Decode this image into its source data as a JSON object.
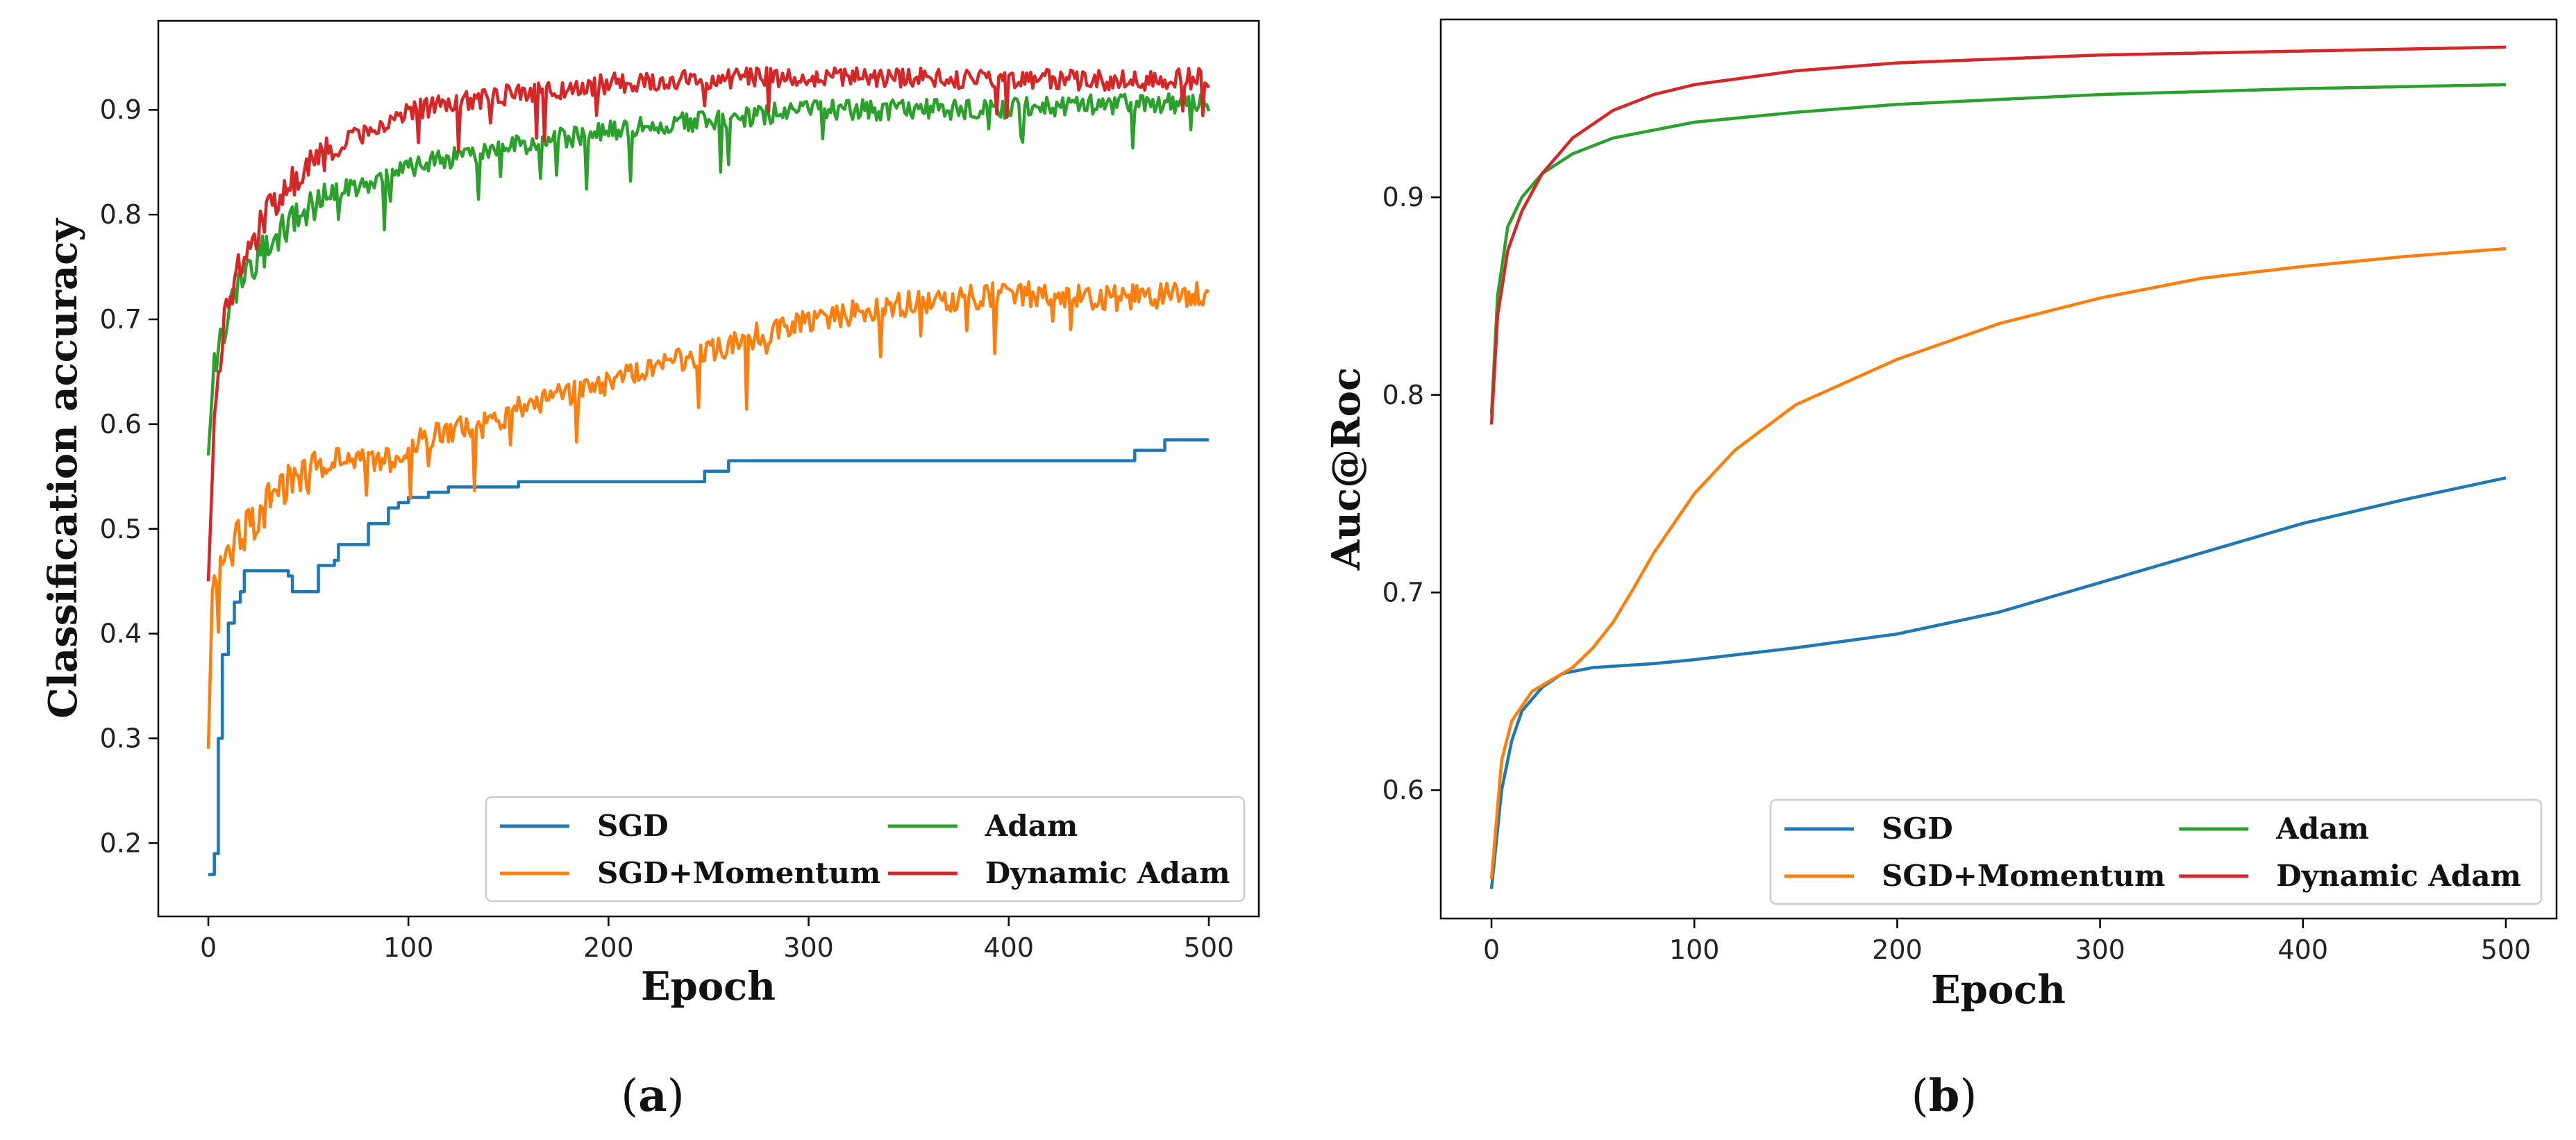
{
  "chart_data": [
    {
      "type": "line",
      "panel": "a",
      "caption_letter": "a",
      "xlabel": "Epoch",
      "ylabel": "Classification accuracy",
      "xlim": [
        -25,
        525
      ],
      "ylim": [
        0.13,
        0.985
      ],
      "xticks": [
        0,
        100,
        200,
        300,
        400,
        500
      ],
      "yticks": [
        0.2,
        0.3,
        0.4,
        0.5,
        0.6,
        0.7,
        0.8,
        0.9
      ],
      "legend_position": "lower-right",
      "series": [
        {
          "name": "SGD",
          "color": "#1f77b4",
          "step": true,
          "noise": 0,
          "points": [
            [
              0,
              0.17
            ],
            [
              3,
              0.19
            ],
            [
              5,
              0.3
            ],
            [
              7,
              0.38
            ],
            [
              10,
              0.41
            ],
            [
              13,
              0.43
            ],
            [
              16,
              0.44
            ],
            [
              18,
              0.46
            ],
            [
              40,
              0.455
            ],
            [
              42,
              0.44
            ],
            [
              52,
              0.44
            ],
            [
              55,
              0.465
            ],
            [
              63,
              0.47
            ],
            [
              65,
              0.485
            ],
            [
              78,
              0.485
            ],
            [
              80,
              0.505
            ],
            [
              90,
              0.52
            ],
            [
              95,
              0.525
            ],
            [
              100,
              0.53
            ],
            [
              110,
              0.535
            ],
            [
              120,
              0.54
            ],
            [
              140,
              0.54
            ],
            [
              155,
              0.545
            ],
            [
              245,
              0.545
            ],
            [
              248,
              0.555
            ],
            [
              257,
              0.555
            ],
            [
              260,
              0.565
            ],
            [
              460,
              0.565
            ],
            [
              463,
              0.575
            ],
            [
              475,
              0.575
            ],
            [
              478,
              0.585
            ],
            [
              500,
              0.585
            ]
          ]
        },
        {
          "name": "SGD+Momentum",
          "color": "#ff7f0e",
          "step": false,
          "noise": 0.012,
          "points": [
            [
              0,
              0.29
            ],
            [
              2,
              0.44
            ],
            [
              5,
              0.46
            ],
            [
              10,
              0.48
            ],
            [
              20,
              0.5
            ],
            [
              30,
              0.53
            ],
            [
              50,
              0.555
            ],
            [
              60,
              0.565
            ],
            [
              95,
              0.565
            ],
            [
              100,
              0.58
            ],
            [
              120,
              0.595
            ],
            [
              140,
              0.6
            ],
            [
              160,
              0.62
            ],
            [
              200,
              0.64
            ],
            [
              250,
              0.67
            ],
            [
              300,
              0.7
            ],
            [
              350,
              0.715
            ],
            [
              400,
              0.725
            ],
            [
              450,
              0.72
            ],
            [
              500,
              0.725
            ]
          ]
        },
        {
          "name": "Adam",
          "color": "#2ca02c",
          "step": false,
          "noise": 0.01,
          "points": [
            [
              0,
              0.57
            ],
            [
              3,
              0.66
            ],
            [
              8,
              0.69
            ],
            [
              15,
              0.73
            ],
            [
              25,
              0.76
            ],
            [
              40,
              0.79
            ],
            [
              60,
              0.82
            ],
            [
              80,
              0.83
            ],
            [
              100,
              0.845
            ],
            [
              150,
              0.865
            ],
            [
              200,
              0.88
            ],
            [
              250,
              0.89
            ],
            [
              300,
              0.9
            ],
            [
              350,
              0.9
            ],
            [
              400,
              0.902
            ],
            [
              450,
              0.905
            ],
            [
              500,
              0.907
            ]
          ]
        },
        {
          "name": "Dynamic Adam",
          "color": "#d62728",
          "step": false,
          "noise": 0.01,
          "points": [
            [
              0,
              0.45
            ],
            [
              3,
              0.6
            ],
            [
              8,
              0.7
            ],
            [
              15,
              0.75
            ],
            [
              25,
              0.79
            ],
            [
              40,
              0.83
            ],
            [
              60,
              0.86
            ],
            [
              80,
              0.88
            ],
            [
              100,
              0.9
            ],
            [
              150,
              0.915
            ],
            [
              200,
              0.925
            ],
            [
              250,
              0.93
            ],
            [
              300,
              0.932
            ],
            [
              350,
              0.93
            ],
            [
              400,
              0.93
            ],
            [
              450,
              0.928
            ],
            [
              500,
              0.93
            ]
          ]
        }
      ]
    },
    {
      "type": "line",
      "panel": "b",
      "caption_letter": "b",
      "xlabel": "Epoch",
      "ylabel": "Auc@Roc",
      "xlim": [
        -25,
        525
      ],
      "ylim": [
        0.535,
        0.99
      ],
      "xticks": [
        0,
        100,
        200,
        300,
        400,
        500
      ],
      "yticks": [
        0.6,
        0.7,
        0.8,
        0.9
      ],
      "legend_position": "lower-right",
      "series": [
        {
          "name": "SGD",
          "color": "#1f77b4",
          "step": false,
          "noise": 0,
          "points": [
            [
              0,
              0.55
            ],
            [
              5,
              0.6
            ],
            [
              10,
              0.625
            ],
            [
              15,
              0.64
            ],
            [
              25,
              0.652
            ],
            [
              35,
              0.659
            ],
            [
              50,
              0.662
            ],
            [
              80,
              0.664
            ],
            [
              100,
              0.666
            ],
            [
              150,
              0.672
            ],
            [
              200,
              0.679
            ],
            [
              250,
              0.69
            ],
            [
              300,
              0.705
            ],
            [
              350,
              0.72
            ],
            [
              400,
              0.735
            ],
            [
              450,
              0.747
            ],
            [
              500,
              0.758
            ]
          ]
        },
        {
          "name": "SGD+Momentum",
          "color": "#ff7f0e",
          "step": false,
          "noise": 0,
          "points": [
            [
              0,
              0.555
            ],
            [
              5,
              0.615
            ],
            [
              10,
              0.635
            ],
            [
              20,
              0.65
            ],
            [
              30,
              0.656
            ],
            [
              40,
              0.662
            ],
            [
              50,
              0.672
            ],
            [
              60,
              0.685
            ],
            [
              70,
              0.702
            ],
            [
              80,
              0.72
            ],
            [
              100,
              0.75
            ],
            [
              120,
              0.772
            ],
            [
              150,
              0.795
            ],
            [
              200,
              0.818
            ],
            [
              250,
              0.836
            ],
            [
              300,
              0.849
            ],
            [
              350,
              0.859
            ],
            [
              400,
              0.865
            ],
            [
              450,
              0.87
            ],
            [
              500,
              0.874
            ]
          ]
        },
        {
          "name": "Adam",
          "color": "#2ca02c",
          "step": false,
          "noise": 0,
          "points": [
            [
              0,
              0.79
            ],
            [
              3,
              0.85
            ],
            [
              8,
              0.885
            ],
            [
              15,
              0.9
            ],
            [
              25,
              0.912
            ],
            [
              40,
              0.922
            ],
            [
              60,
              0.93
            ],
            [
              100,
              0.938
            ],
            [
              150,
              0.943
            ],
            [
              200,
              0.947
            ],
            [
              300,
              0.952
            ],
            [
              400,
              0.955
            ],
            [
              500,
              0.957
            ]
          ]
        },
        {
          "name": "Dynamic Adam",
          "color": "#d62728",
          "step": false,
          "noise": 0,
          "points": [
            [
              0,
              0.785
            ],
            [
              3,
              0.84
            ],
            [
              8,
              0.873
            ],
            [
              15,
              0.893
            ],
            [
              25,
              0.912
            ],
            [
              40,
              0.93
            ],
            [
              60,
              0.944
            ],
            [
              80,
              0.952
            ],
            [
              100,
              0.957
            ],
            [
              150,
              0.964
            ],
            [
              200,
              0.968
            ],
            [
              300,
              0.972
            ],
            [
              400,
              0.974
            ],
            [
              500,
              0.976
            ]
          ]
        }
      ]
    }
  ]
}
